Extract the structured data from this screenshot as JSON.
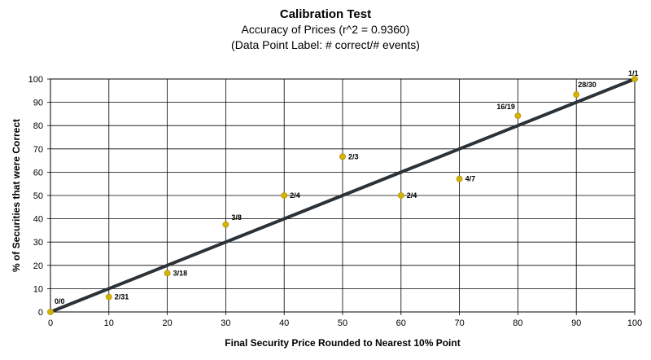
{
  "chart_data": {
    "type": "scatter",
    "title": "Calibration Test",
    "subtitle": "Accuracy of Prices (r^2 = 0.9360)",
    "subtitle2": "(Data Point Label:  # correct/# events)",
    "xlabel": "Final Security Price Rounded to Nearest 10% Point",
    "ylabel": "% of Securities that were Correct",
    "xlim": [
      0,
      100
    ],
    "ylim": [
      0,
      100
    ],
    "xticks": [
      "0",
      "10",
      "20",
      "30",
      "40",
      "50",
      "60",
      "70",
      "80",
      "90",
      "100"
    ],
    "yticks": [
      "0",
      "10",
      "20",
      "30",
      "40",
      "50",
      "60",
      "70",
      "80",
      "90",
      "100"
    ],
    "grid": true,
    "points": [
      {
        "x": 0,
        "y": 0,
        "label": "0/0"
      },
      {
        "x": 10,
        "y": 6.45,
        "label": "2/31"
      },
      {
        "x": 20,
        "y": 16.67,
        "label": "3/18"
      },
      {
        "x": 30,
        "y": 37.5,
        "label": "3/8"
      },
      {
        "x": 40,
        "y": 50,
        "label": "2/4"
      },
      {
        "x": 50,
        "y": 66.67,
        "label": "2/3"
      },
      {
        "x": 60,
        "y": 50,
        "label": "2/4"
      },
      {
        "x": 70,
        "y": 57.14,
        "label": "4/7"
      },
      {
        "x": 80,
        "y": 84.21,
        "label": "16/19"
      },
      {
        "x": 90,
        "y": 93.33,
        "label": "28/30"
      },
      {
        "x": 100,
        "y": 100,
        "label": "1/1"
      }
    ],
    "reference_line": {
      "from": [
        0,
        0
      ],
      "to": [
        100,
        100
      ]
    },
    "colors": {
      "point": "#D4B106",
      "point_edge": "#A88C00",
      "line": "#2B3238",
      "grid": "#000000"
    }
  }
}
